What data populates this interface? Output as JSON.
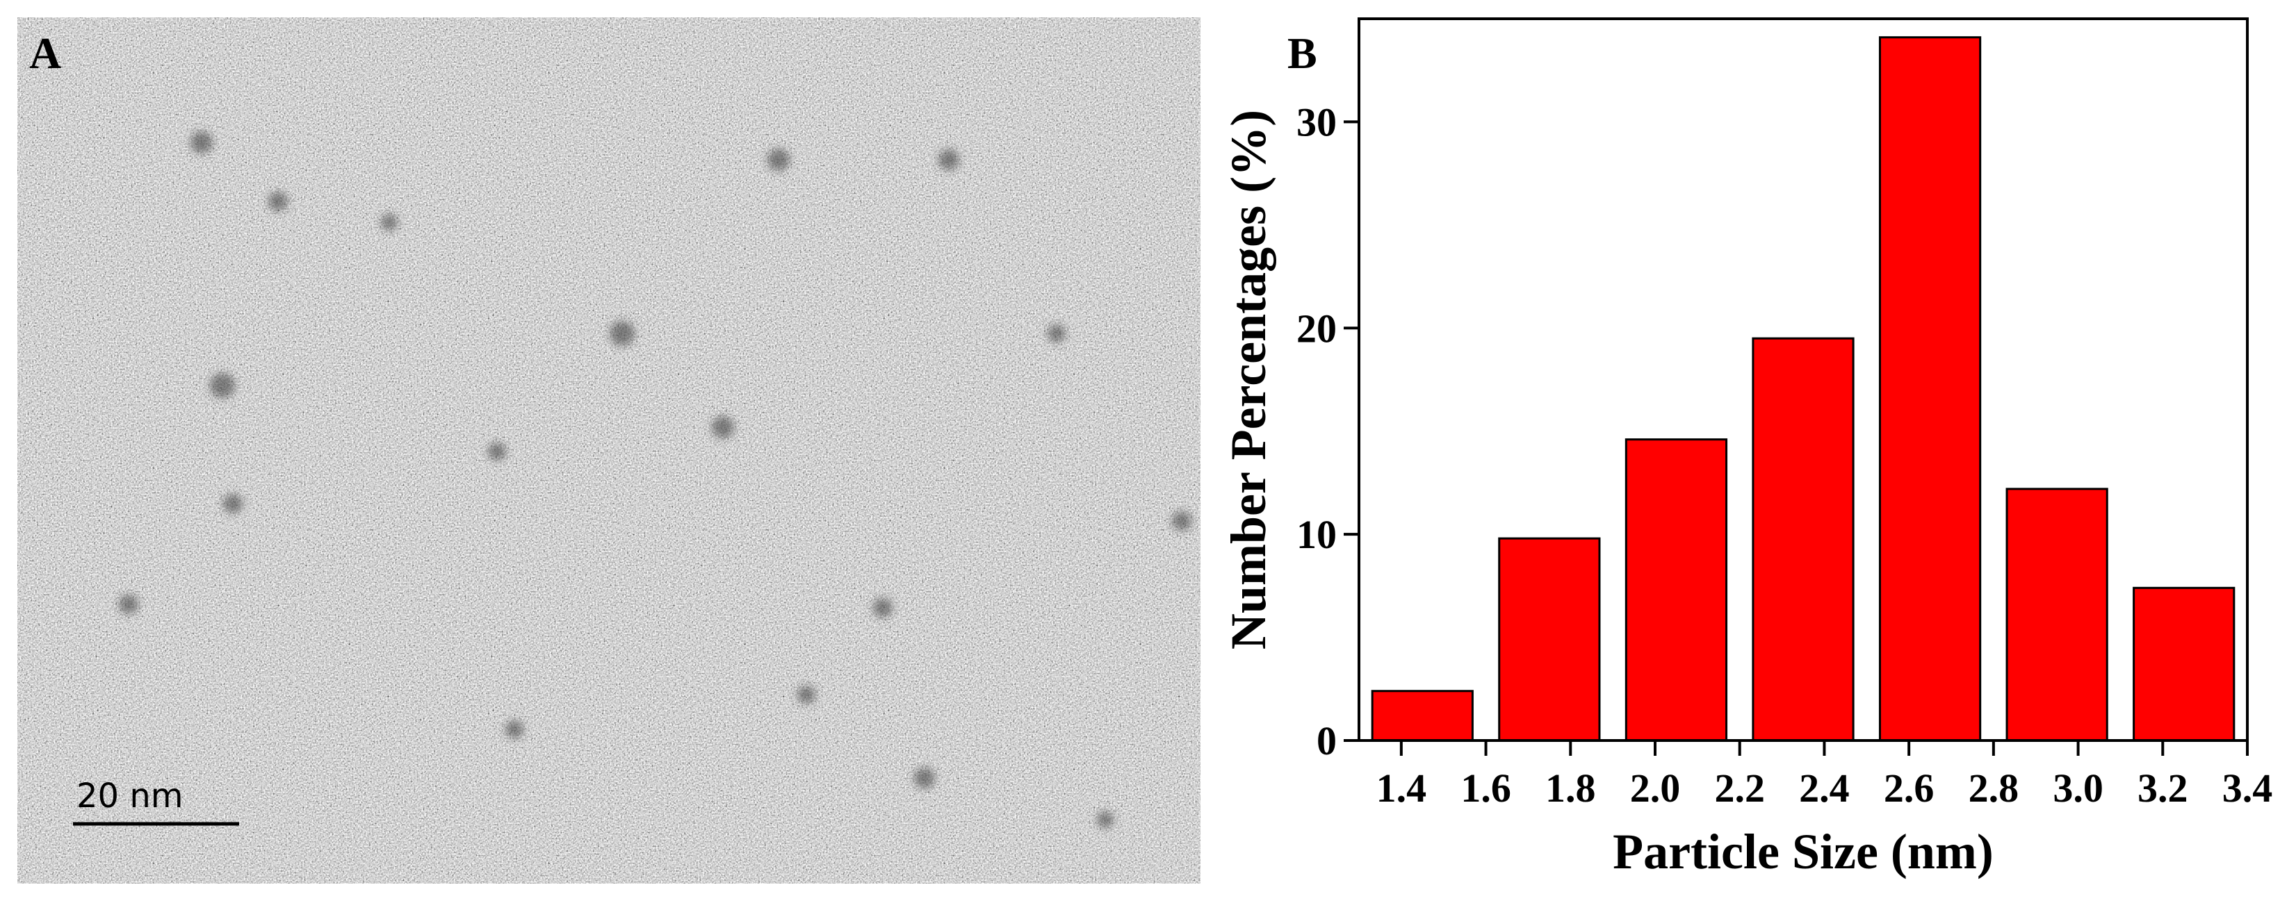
{
  "panel_a": {
    "label": "A",
    "scale_bar": "20 nm"
  },
  "chart_data": {
    "type": "histogram",
    "panel_label": "B",
    "x_label": "Particle Size (nm)",
    "y_label": "Number Percentages (%)",
    "bins": [
      1.3,
      1.6,
      1.9,
      2.2,
      2.5,
      2.8,
      3.1,
      3.4
    ],
    "values": [
      2.4,
      9.8,
      14.6,
      19.5,
      34.1,
      12.2,
      7.4
    ],
    "color": "#ff0000",
    "xlim": [
      1.3,
      3.4
    ],
    "xticks": [
      1.4,
      1.6,
      1.8,
      {
        "value": 2,
        "label": "2.0"
      },
      2.2,
      2.4,
      2.6,
      2.8,
      {
        "value": 3,
        "label": "3.0"
      },
      3.2,
      3.4
    ],
    "ylim": [
      0,
      35
    ],
    "yticks": [
      0,
      10,
      20,
      30
    ]
  }
}
